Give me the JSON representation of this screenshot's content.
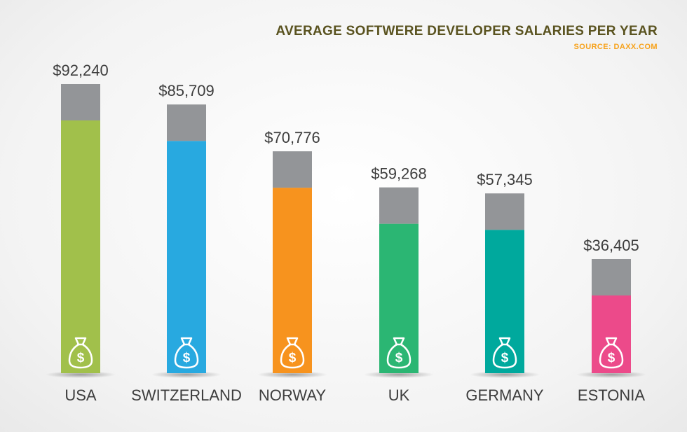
{
  "chart_data": {
    "type": "bar",
    "title": "AVERAGE SOFTWERE DEVELOPER SALARIES PER YEAR",
    "subtitle": "SOURCE: DAXX.COM",
    "categories": [
      "USA",
      "SWITZERLAND",
      "NORWAY",
      "UK",
      "GERMANY",
      "ESTONIA"
    ],
    "values": [
      92240,
      85709,
      70776,
      59268,
      57345,
      36405
    ],
    "value_labels": [
      "$92,240",
      "$85,709",
      "$70,776",
      "$59,268",
      "$57,345",
      "$36,405"
    ],
    "colors": [
      "#a1c04b",
      "#28a9e0",
      "#f7931e",
      "#2bb673",
      "#00a99d",
      "#ec4a8a"
    ],
    "cap_color": "#939598",
    "bar_icon": "money-bag-icon",
    "ylim": [
      0,
      100000
    ],
    "grid": false,
    "legend": "none"
  }
}
